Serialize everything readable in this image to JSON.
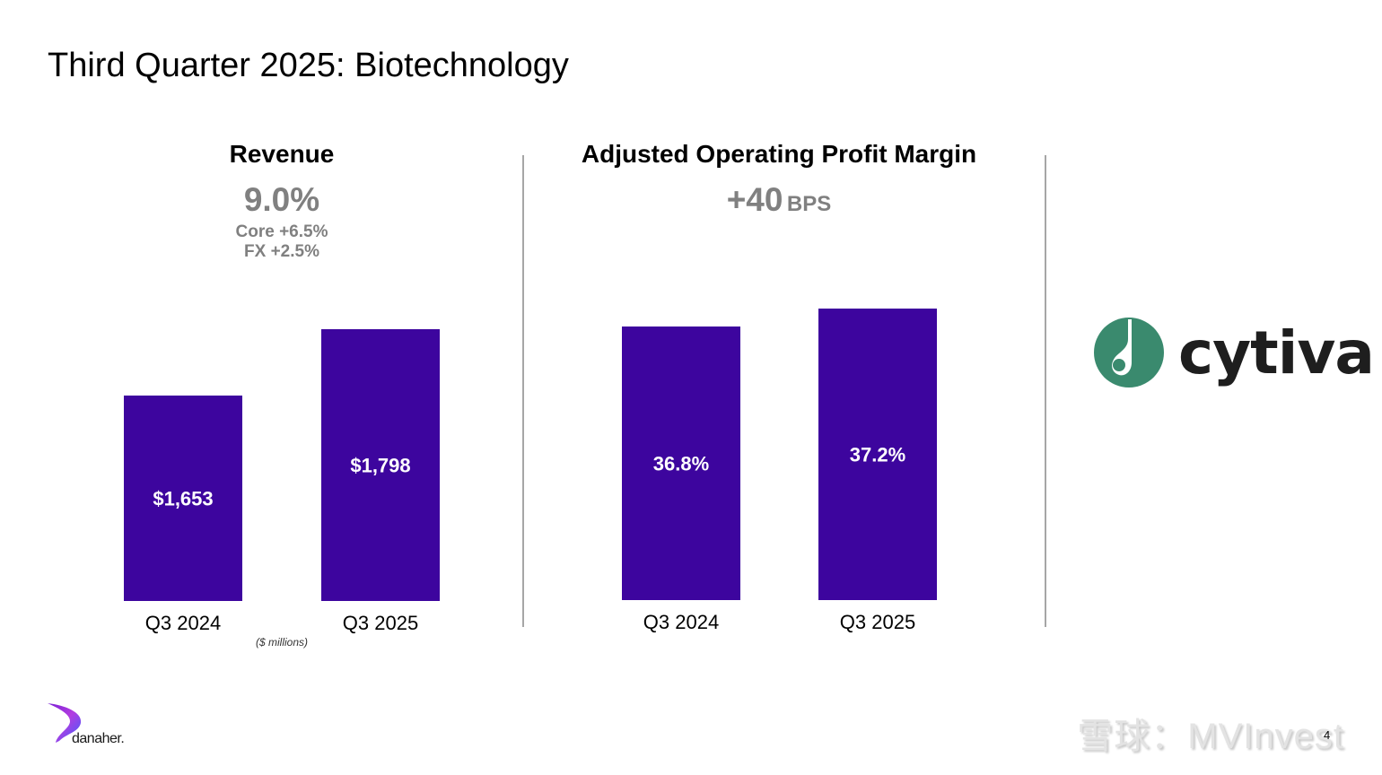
{
  "slide": {
    "title": "Third Quarter 2025: Biotechnology",
    "page_number": "4",
    "units_note": "($ millions)",
    "bar_color": "#3d059e"
  },
  "revenue": {
    "title": "Revenue",
    "growth": "9.0%",
    "core": "Core +6.5%",
    "fx": "FX +2.5%"
  },
  "margin": {
    "title": "Adjusted Operating Profit Margin",
    "change_value": "+40",
    "change_unit": "BPS"
  },
  "logos": {
    "segment_brand": "cytiva",
    "segment_brand_color": "#3a8a6e",
    "company_brand": "danaher."
  },
  "watermark": "雪球：MVInvest",
  "chart_data": [
    {
      "type": "bar",
      "title": "Revenue",
      "categories": [
        "Q3 2024",
        "Q3 2025"
      ],
      "values": [
        1653,
        1798
      ],
      "value_labels": [
        "$1,653",
        "$1,798"
      ],
      "ylabel": "$ millions",
      "ylim": [
        1204,
        1798
      ],
      "grid": false
    },
    {
      "type": "bar",
      "title": "Adjusted Operating Profit Margin",
      "categories": [
        "Q3 2024",
        "Q3 2025"
      ],
      "values": [
        36.8,
        37.2
      ],
      "value_labels": [
        "36.8%",
        "37.2%"
      ],
      "ylabel": "%",
      "ylim": [
        30.7,
        37.2
      ],
      "grid": false
    }
  ]
}
